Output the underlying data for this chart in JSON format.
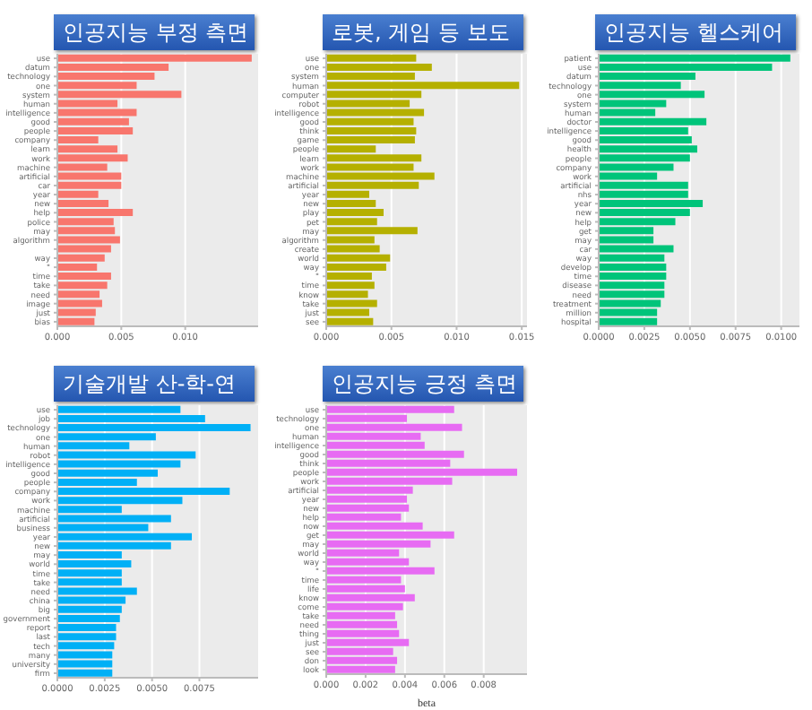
{
  "chart_data": [
    {
      "type": "bar",
      "orientation": "horizontal",
      "title": "인공지능 부정 측면",
      "color": "#f8766d",
      "grid": "x",
      "xlim": [
        0,
        0.0157
      ],
      "xticks": [
        {
          "value": 0,
          "label": "0.000"
        },
        {
          "value": 0.005,
          "label": "0.005"
        },
        {
          "value": 0.01,
          "label": "0.010"
        }
      ],
      "categories": [
        "use",
        "datum",
        "technology",
        "one",
        "system",
        "human",
        "intelligence",
        "good",
        "people",
        "company",
        "learn",
        "work",
        "machine",
        "artificial",
        "car",
        "year",
        "new",
        "help",
        "police",
        "may",
        "algorithm",
        null,
        "way",
        "\"",
        "time",
        "take",
        "need",
        "image",
        "just",
        "bias"
      ],
      "values": [
        0.0152,
        0.0087,
        0.0076,
        0.0062,
        0.0097,
        0.0047,
        0.0062,
        0.0056,
        0.0059,
        0.0032,
        0.0047,
        0.0055,
        0.0039,
        0.005,
        0.005,
        0.0032,
        0.004,
        0.0059,
        0.0044,
        0.0045,
        0.0049,
        0.0042,
        0.0037,
        0.0031,
        0.0042,
        0.0039,
        0.0033,
        0.0035,
        0.003,
        0.0029
      ]
    },
    {
      "type": "bar",
      "orientation": "horizontal",
      "title": "로봇, 게임 등 보도",
      "color": "#b5b000",
      "grid": "x",
      "xlim": [
        0,
        0.0154
      ],
      "xticks": [
        {
          "value": 0,
          "label": "0.000"
        },
        {
          "value": 0.005,
          "label": "0.005"
        },
        {
          "value": 0.01,
          "label": "0.010"
        },
        {
          "value": 0.015,
          "label": "0.015"
        }
      ],
      "categories": [
        "use",
        "one",
        "system",
        "human",
        "computer",
        "robot",
        "intelligence",
        "good",
        "think",
        "game",
        "people",
        "learn",
        "work",
        "machine",
        "artificial",
        "year",
        "new",
        "play",
        "pet",
        "may",
        "algorithm",
        "create",
        "world",
        "way",
        "\"",
        "time",
        "know",
        "take",
        "just",
        "see"
      ],
      "values": [
        0.0069,
        0.0081,
        0.0068,
        0.0148,
        0.0073,
        0.0064,
        0.0075,
        0.0067,
        0.0069,
        0.0068,
        0.0038,
        0.0073,
        0.0067,
        0.0083,
        0.0071,
        0.0033,
        0.0038,
        0.0044,
        0.0039,
        0.007,
        0.0037,
        0.0041,
        0.0049,
        0.0046,
        0.0035,
        0.0037,
        0.0032,
        0.0039,
        0.0033,
        0.0036
      ]
    },
    {
      "type": "bar",
      "orientation": "horizontal",
      "title": "인공지능 헬스케어",
      "color": "#00c47a",
      "grid": "x",
      "xlim": [
        0,
        0.011
      ],
      "xticks": [
        {
          "value": 0,
          "label": "0.0000"
        },
        {
          "value": 0.0025,
          "label": "0.0025"
        },
        {
          "value": 0.005,
          "label": "0.0050"
        },
        {
          "value": 0.0075,
          "label": "0.0075"
        },
        {
          "value": 0.01,
          "label": "0.0100"
        }
      ],
      "categories": [
        "patient",
        "use",
        "datum",
        "technology",
        "one",
        "system",
        "human",
        "doctor",
        "intelligence",
        "good",
        "health",
        "people",
        "company",
        "work",
        "artificial",
        "nhs",
        "year",
        "new",
        "help",
        "get",
        "may",
        "car",
        "way",
        "develop",
        "time",
        "disease",
        "need",
        "treatment",
        "million",
        "hospital"
      ],
      "values": [
        0.0105,
        0.0095,
        0.0053,
        0.0045,
        0.0058,
        0.0037,
        0.0031,
        0.0059,
        0.0049,
        0.0051,
        0.0054,
        0.005,
        0.0041,
        0.0032,
        0.0049,
        0.0049,
        0.0057,
        0.005,
        0.0042,
        0.003,
        0.003,
        0.0041,
        0.0036,
        0.0037,
        0.0037,
        0.0036,
        0.0036,
        0.0034,
        0.0032,
        0.0032
      ]
    },
    {
      "type": "bar",
      "orientation": "horizontal",
      "title": "기술개발 산-학-연",
      "color": "#00b0f6",
      "grid": "x",
      "xlim": [
        0,
        0.0106
      ],
      "xticks": [
        {
          "value": 0,
          "label": "0.0000"
        },
        {
          "value": 0.0025,
          "label": "0.0025"
        },
        {
          "value": 0.005,
          "label": "0.0050"
        },
        {
          "value": 0.0075,
          "label": "0.0075"
        }
      ],
      "categories": [
        "use",
        "job",
        "technology",
        "one",
        "human",
        "robot",
        "intelligence",
        "good",
        "people",
        "company",
        "work",
        "machine",
        "artificial",
        "business",
        "year",
        "new",
        "may",
        "world",
        "time",
        "take",
        "need",
        "china",
        "big",
        "government",
        "report",
        "last",
        "tech",
        "many",
        "university",
        "firm"
      ],
      "values": [
        0.0065,
        0.0078,
        0.0102,
        0.0052,
        0.0038,
        0.0073,
        0.0065,
        0.0053,
        0.0042,
        0.0091,
        0.0066,
        0.0034,
        0.006,
        0.0048,
        0.0071,
        0.006,
        0.0034,
        0.0039,
        0.0034,
        0.0034,
        0.0042,
        0.0036,
        0.0034,
        0.0033,
        0.0031,
        0.0031,
        0.003,
        0.0029,
        0.0029,
        0.0029
      ]
    },
    {
      "type": "bar",
      "orientation": "horizontal",
      "title": "인공지능 긍정 측면",
      "xlabel": "beta",
      "color": "#e76bf3",
      "grid": "x",
      "xlim": [
        0,
        0.0102
      ],
      "xticks": [
        {
          "value": 0,
          "label": "0.000"
        },
        {
          "value": 0.002,
          "label": "0.002"
        },
        {
          "value": 0.004,
          "label": "0.004"
        },
        {
          "value": 0.006,
          "label": "0.006"
        },
        {
          "value": 0.008,
          "label": "0.008"
        }
      ],
      "categories": [
        "use",
        "technology",
        "one",
        "human",
        "intelligence",
        "good",
        "think",
        "people",
        "work",
        "artificial",
        "year",
        "new",
        "help",
        "now",
        "get",
        "may",
        "world",
        "way",
        "\"",
        "time",
        "life",
        "know",
        "come",
        "take",
        "need",
        "thing",
        "just",
        "see",
        "don",
        "look"
      ],
      "values": [
        0.0065,
        0.0041,
        0.0069,
        0.0048,
        0.005,
        0.007,
        0.0063,
        0.0097,
        0.0064,
        0.0044,
        0.0041,
        0.0042,
        0.0038,
        0.0049,
        0.0065,
        0.0053,
        0.0037,
        0.0042,
        0.0055,
        0.0038,
        0.004,
        0.0045,
        0.0039,
        0.0035,
        0.0036,
        0.0037,
        0.0042,
        0.0034,
        0.0036,
        0.0035
      ]
    }
  ]
}
